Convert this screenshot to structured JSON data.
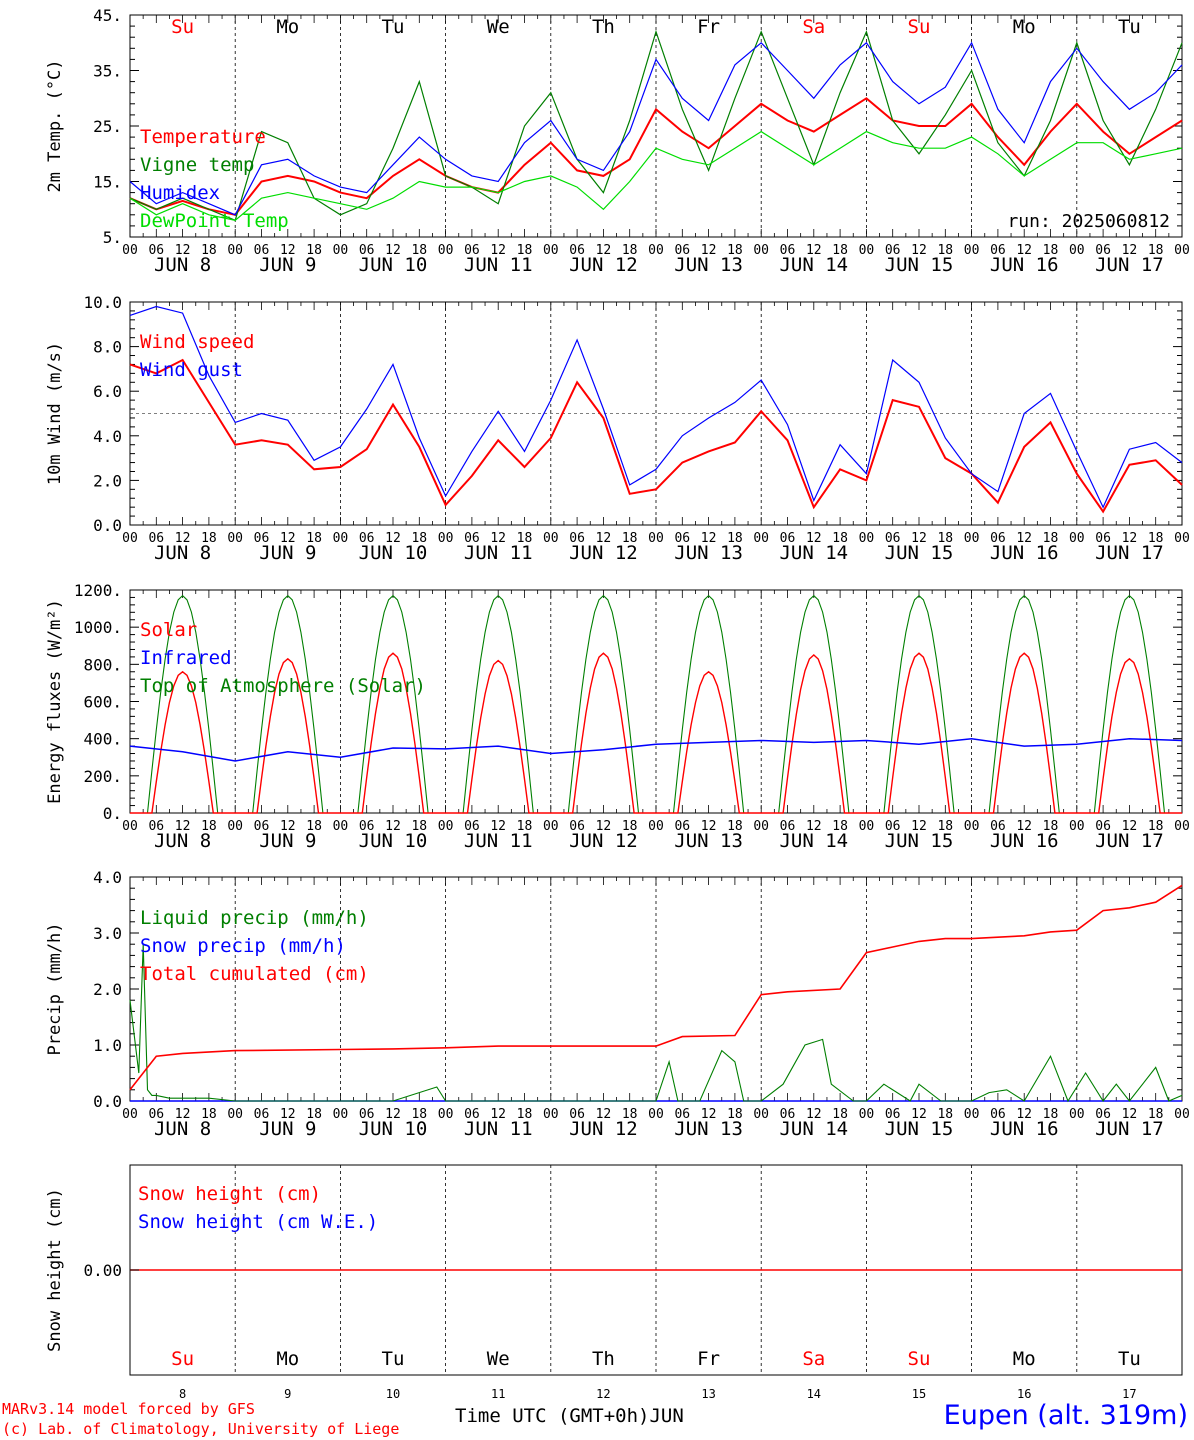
{
  "meta": {
    "run_label": "run: 2025060812",
    "credit_model": "MARv3.14 model forced by GFS",
    "credit_lab": "(c) Lab. of Climatology, University of Liege",
    "xaxis_title": "Time UTC (GMT+0h)",
    "month": "JUN",
    "station": "Eupen (alt. 319m)"
  },
  "days": {
    "weekdays": [
      "Su",
      "Mo",
      "Tu",
      "We",
      "Th",
      "Fr",
      "Sa",
      "Su",
      "Mo",
      "Tu"
    ],
    "weekend_flags": [
      true,
      false,
      false,
      false,
      false,
      false,
      true,
      true,
      false,
      false
    ],
    "dates": [
      "8",
      "9",
      "10",
      "11",
      "12",
      "13",
      "14",
      "15",
      "16",
      "17"
    ],
    "hour_ticks": [
      "00",
      "06",
      "12",
      "18"
    ]
  },
  "colors": {
    "red": "#ff0000",
    "green": "#007f00",
    "blue": "#0000ff",
    "lightgreen": "#00dd00",
    "black": "#000000"
  },
  "chart_data": [
    {
      "id": "temperature",
      "type": "line",
      "ylabel": "2m Temp. (°C)",
      "ylim": [
        5,
        45
      ],
      "yticks": [
        5,
        15,
        25,
        35,
        45
      ],
      "ytick_labels": [
        "5.",
        "15.",
        "25.",
        "35.",
        "45."
      ],
      "x_unit": "hours from 2025-06-08 00 UTC",
      "x_hours": [
        0,
        6,
        12,
        18,
        24,
        30,
        36,
        42,
        48,
        54,
        60,
        66,
        72,
        78,
        84,
        90,
        96,
        102,
        108,
        114,
        120,
        126,
        132,
        138,
        144,
        150,
        156,
        162,
        168,
        174,
        180,
        186,
        192,
        198,
        204,
        210,
        216,
        222,
        228,
        234,
        240
      ],
      "series": [
        {
          "name": "Temperature",
          "color": "red",
          "values": [
            12,
            10,
            11.5,
            10,
            9,
            15,
            16,
            15,
            13,
            12,
            16,
            19,
            16,
            14,
            13,
            18,
            22,
            17,
            16,
            19,
            28,
            24,
            21,
            25,
            29,
            26,
            24,
            27,
            30,
            26,
            25,
            25,
            29,
            23,
            18,
            24,
            29,
            24,
            20,
            23,
            26
          ]
        },
        {
          "name": "Vigne temp",
          "color": "green",
          "values": [
            12,
            10,
            12,
            10,
            8,
            24,
            22,
            12,
            9,
            11,
            21,
            33,
            16,
            14,
            11,
            25,
            31,
            19,
            13,
            26,
            42,
            28,
            17,
            30,
            42,
            30,
            18,
            31,
            42,
            26,
            20,
            27,
            35,
            22,
            16,
            26,
            40,
            26,
            18,
            28,
            40
          ]
        },
        {
          "name": "Humidex",
          "color": "blue",
          "values": [
            15,
            11,
            13,
            11,
            9,
            18,
            19,
            16,
            14,
            13,
            18,
            23,
            19,
            16,
            15,
            22,
            26,
            19,
            17,
            24,
            37,
            30,
            26,
            36,
            40,
            35,
            30,
            36,
            40,
            33,
            29,
            32,
            40,
            28,
            22,
            33,
            39,
            33,
            28,
            31,
            36
          ]
        },
        {
          "name": "DewPoint Temp",
          "color": "lightgreen",
          "values": [
            12,
            9,
            11,
            9,
            8,
            12,
            13,
            12,
            11,
            10,
            12,
            15,
            14,
            14,
            13,
            15,
            16,
            14,
            10,
            15,
            21,
            19,
            18,
            21,
            24,
            21,
            18,
            21,
            24,
            22,
            21,
            21,
            23,
            20,
            16,
            19,
            22,
            22,
            19,
            20,
            21
          ]
        }
      ]
    },
    {
      "id": "wind",
      "type": "line",
      "ylabel": "10m Wind (m/s)",
      "ylim": [
        0,
        10
      ],
      "yticks": [
        0,
        2,
        4,
        6,
        8,
        10
      ],
      "ytick_labels": [
        "0.0",
        "2.0",
        "4.0",
        "6.0",
        "8.0",
        "10.0"
      ],
      "reference_line": 5,
      "x_hours": [
        0,
        6,
        12,
        18,
        24,
        30,
        36,
        42,
        48,
        54,
        60,
        66,
        72,
        78,
        84,
        90,
        96,
        102,
        108,
        114,
        120,
        126,
        132,
        138,
        144,
        150,
        156,
        162,
        168,
        174,
        180,
        186,
        192,
        198,
        204,
        210,
        216,
        222,
        228,
        234,
        240
      ],
      "series": [
        {
          "name": "Wind speed",
          "color": "red",
          "values": [
            7.2,
            6.8,
            7.4,
            5.5,
            3.6,
            3.8,
            3.6,
            2.5,
            2.6,
            3.4,
            5.4,
            3.5,
            0.9,
            2.2,
            3.8,
            2.6,
            3.9,
            6.4,
            4.8,
            1.4,
            1.6,
            2.8,
            3.3,
            3.7,
            5.1,
            3.8,
            0.8,
            2.5,
            2.0,
            5.6,
            5.3,
            3.0,
            2.3,
            1.0,
            3.5,
            4.6,
            2.3,
            0.6,
            2.7,
            2.9,
            1.8
          ]
        },
        {
          "name": "Wind gust",
          "color": "blue",
          "values": [
            9.4,
            9.8,
            9.5,
            6.7,
            4.6,
            5.0,
            4.7,
            2.9,
            3.5,
            5.2,
            7.2,
            3.9,
            1.3,
            3.3,
            5.1,
            3.3,
            5.6,
            8.3,
            5.2,
            1.8,
            2.5,
            4.0,
            4.8,
            5.5,
            6.5,
            4.5,
            1.1,
            3.6,
            2.3,
            7.4,
            6.4,
            3.9,
            2.3,
            1.5,
            5.0,
            5.9,
            3.3,
            0.8,
            3.4,
            3.7,
            2.8
          ]
        }
      ]
    },
    {
      "id": "energy",
      "type": "line",
      "ylabel": "Energy fluxes (W/m²)",
      "ylim": [
        0,
        1200
      ],
      "yticks": [
        0,
        200,
        400,
        600,
        800,
        1000,
        1200
      ],
      "ytick_labels": [
        "0.",
        "200.",
        "400.",
        "600.",
        "800.",
        "1000.",
        "1200."
      ],
      "solar_window_hours": [
        4,
        20
      ],
      "series": [
        {
          "name": "Solar",
          "color": "red",
          "daily_peaks": [
            760,
            830,
            860,
            820,
            860,
            760,
            850,
            860,
            860,
            830
          ]
        },
        {
          "name": "Infrared",
          "color": "blue",
          "x_hours": [
            0,
            12,
            24,
            36,
            48,
            60,
            72,
            84,
            96,
            108,
            120,
            132,
            144,
            156,
            168,
            180,
            192,
            204,
            216,
            228,
            240
          ],
          "values": [
            360,
            330,
            280,
            330,
            300,
            350,
            345,
            360,
            320,
            340,
            370,
            380,
            390,
            380,
            390,
            370,
            400,
            360,
            370,
            400,
            390
          ]
        },
        {
          "name": "Top of Atmosphere (Solar)",
          "color": "green",
          "daily_peak": 1170
        }
      ]
    },
    {
      "id": "precip",
      "type": "line",
      "ylabel": "Precip (mm/h)",
      "ylim": [
        0,
        4
      ],
      "yticks": [
        0,
        1,
        2,
        3,
        4
      ],
      "ytick_labels": [
        "0.0",
        "1.0",
        "2.0",
        "3.0",
        "4.0"
      ],
      "x_hours": [
        0,
        6,
        12,
        24,
        48,
        60,
        72,
        84,
        96,
        108,
        120,
        126,
        138,
        144,
        150,
        162,
        168,
        174,
        180,
        186,
        192,
        204,
        210,
        216,
        222,
        228,
        234,
        240
      ],
      "series": [
        {
          "name": "Total cumulated (cm)",
          "color": "red",
          "values": [
            0.2,
            0.8,
            0.85,
            0.9,
            0.92,
            0.93,
            0.95,
            0.98,
            0.98,
            0.98,
            0.98,
            1.15,
            1.17,
            1.9,
            1.95,
            2.0,
            2.65,
            2.75,
            2.85,
            2.9,
            2.9,
            2.95,
            3.02,
            3.05,
            3.4,
            3.45,
            3.55,
            3.85
          ]
        },
        {
          "name": "Liquid precip (mm/h)",
          "color": "green",
          "x_hours": [
            0,
            2,
            3,
            4,
            5,
            6,
            9,
            18,
            24,
            60,
            70,
            72,
            120,
            123,
            125,
            130,
            135,
            138,
            140,
            144,
            149,
            154,
            158,
            160,
            165,
            168,
            172,
            178,
            180,
            185,
            192,
            196,
            200,
            204,
            210,
            214,
            218,
            222,
            225,
            228,
            234,
            237,
            240
          ],
          "values": [
            1.8,
            0.5,
            2.8,
            0.2,
            0.1,
            0.1,
            0.05,
            0.05,
            0,
            0,
            0.25,
            0,
            0,
            0.7,
            0,
            0,
            0.9,
            0.7,
            0,
            0,
            0.3,
            1.0,
            1.1,
            0.3,
            0,
            0,
            0.3,
            0,
            0.3,
            0,
            0,
            0.15,
            0.2,
            0,
            0.8,
            0,
            0.5,
            0,
            0.3,
            0,
            0.6,
            0,
            0.1
          ]
        },
        {
          "name": "Snow precip (mm/h)",
          "color": "blue",
          "x_hours": [
            0,
            240
          ],
          "values": [
            0,
            0
          ]
        }
      ]
    },
    {
      "id": "snow",
      "type": "line",
      "ylabel": "Snow height (cm)",
      "ytick_labels": [
        "0.00"
      ],
      "series": [
        {
          "name": "Snow height (cm)",
          "color": "red",
          "x_hours": [
            0,
            240
          ],
          "values": [
            0,
            0
          ]
        },
        {
          "name": "Snow height (cm W.E.)",
          "color": "blue",
          "x_hours": [
            0,
            240
          ],
          "values": [
            0,
            0
          ]
        }
      ]
    }
  ]
}
